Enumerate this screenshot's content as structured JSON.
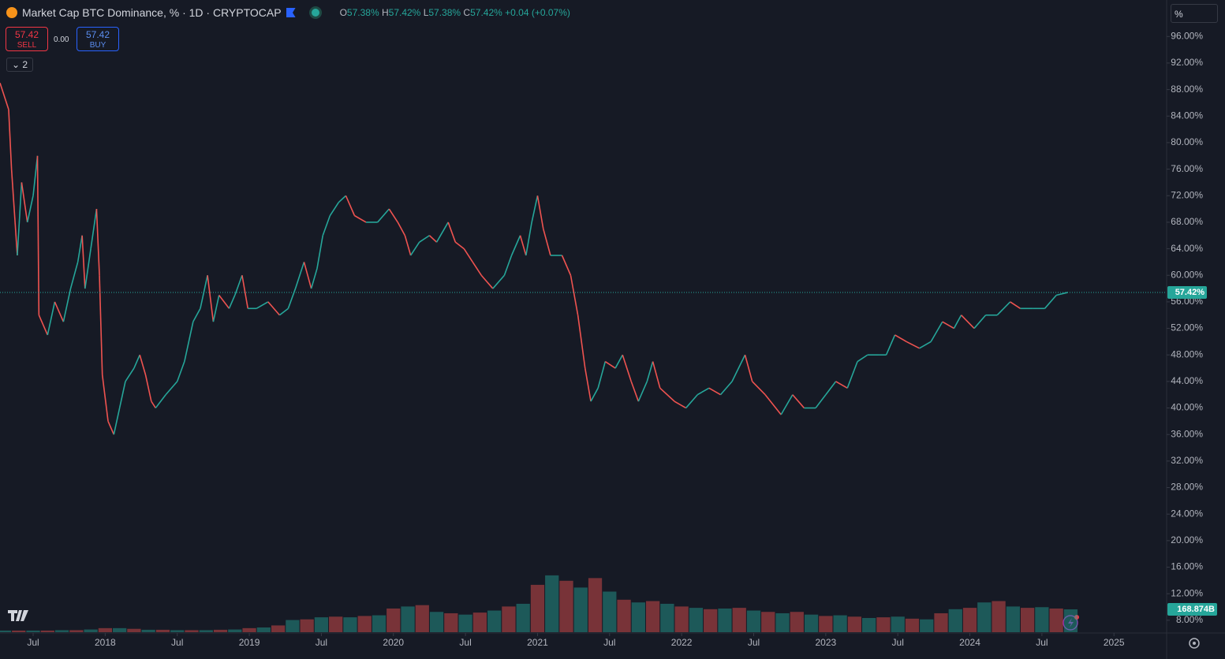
{
  "header": {
    "title": "Market Cap BTC Dominance, % · 1D · CRYPTOCAP",
    "ohlc": [
      {
        "label": "O",
        "value": "57.38%"
      },
      {
        "label": "H",
        "value": "57.42%"
      },
      {
        "label": "L",
        "value": "57.38%"
      },
      {
        "label": "C",
        "value": "57.42%"
      }
    ],
    "change": "+0.04 (+0.07%)",
    "sell": {
      "price": "57.42",
      "label": "SELL"
    },
    "spread": "0.00",
    "buy": {
      "price": "57.42",
      "label": "BUY"
    },
    "indicators": "2",
    "scale_unit": "%"
  },
  "chart_data": {
    "type": "line",
    "grid": false,
    "x": [
      2017.27,
      2017.33,
      2017.35,
      2017.39,
      2017.42,
      2017.46,
      2017.5,
      2017.53,
      2017.54,
      2017.6,
      2017.65,
      2017.71,
      2017.76,
      2017.81,
      2017.84,
      2017.86,
      2017.9,
      2017.94,
      2017.96,
      2017.98,
      2018.02,
      2018.06,
      2018.1,
      2018.14,
      2018.2,
      2018.24,
      2018.28,
      2018.32,
      2018.35,
      2018.42,
      2018.5,
      2018.55,
      2018.61,
      2018.66,
      2018.71,
      2018.75,
      2018.79,
      2018.86,
      2018.9,
      2018.95,
      2018.99,
      2019.05,
      2019.13,
      2019.21,
      2019.27,
      2019.32,
      2019.38,
      2019.43,
      2019.47,
      2019.51,
      2019.56,
      2019.62,
      2019.67,
      2019.73,
      2019.81,
      2019.89,
      2019.97,
      2020.03,
      2020.08,
      2020.12,
      2020.18,
      2020.25,
      2020.3,
      2020.38,
      2020.43,
      2020.49,
      2020.55,
      2020.61,
      2020.69,
      2020.77,
      2020.82,
      2020.88,
      2020.92,
      2020.96,
      2021.0,
      2021.04,
      2021.09,
      2021.17,
      2021.23,
      2021.28,
      2021.33,
      2021.37,
      2021.42,
      2021.47,
      2021.54,
      2021.59,
      2021.65,
      2021.7,
      2021.76,
      2021.8,
      2021.85,
      2021.95,
      2022.03,
      2022.11,
      2022.19,
      2022.27,
      2022.35,
      2022.44,
      2022.49,
      2022.58,
      2022.69,
      2022.77,
      2022.85,
      2022.93,
      2023.0,
      2023.07,
      2023.15,
      2023.22,
      2023.29,
      2023.37,
      2023.42,
      2023.48,
      2023.56,
      2023.65,
      2023.73,
      2023.81,
      2023.89,
      2023.94,
      2024.03,
      2024.11,
      2024.19,
      2024.28,
      2024.35,
      2024.44,
      2024.52,
      2024.6,
      2024.68
    ],
    "series": [
      {
        "colors": {
          "up": "#26a69a",
          "down": "#ef5350"
        },
        "values": [
          89,
          85,
          76,
          63,
          74,
          68,
          72,
          78,
          54,
          51,
          56,
          53,
          58,
          62,
          66,
          58,
          64,
          70,
          60,
          45,
          38,
          36,
          40,
          44,
          46,
          48,
          45,
          41,
          40,
          42,
          44,
          47,
          53,
          55,
          60,
          53,
          57,
          55,
          57,
          60,
          55,
          55,
          56,
          54,
          55,
          58,
          62,
          58,
          61,
          66,
          69,
          71,
          72,
          69,
          68,
          68,
          70,
          68,
          66,
          63,
          65,
          66,
          65,
          68,
          65,
          64,
          62,
          60,
          58,
          60,
          63,
          66,
          63,
          68,
          72,
          67,
          63,
          63,
          60,
          54,
          46,
          41,
          43,
          47,
          46,
          48,
          44,
          41,
          44,
          47,
          43,
          41,
          40,
          42,
          43,
          42,
          44,
          48,
          44,
          42,
          39,
          42,
          40,
          40,
          42,
          44,
          43,
          47,
          48,
          48,
          48,
          51,
          50,
          49,
          50,
          53,
          52,
          54,
          52,
          54,
          54,
          56,
          55,
          55,
          55,
          57,
          57.42
        ]
      }
    ],
    "price_line": {
      "value": 57.42,
      "label": "57.42%",
      "color": "#26a69a"
    },
    "xlim": [
      2017.27,
      2025.36
    ],
    "xticks": [
      {
        "value": 2017.5,
        "label": "Jul"
      },
      2018,
      {
        "value": 2018.5,
        "label": "Jul"
      },
      2019,
      {
        "value": 2019.5,
        "label": "Jul"
      },
      2020,
      {
        "value": 2020.5,
        "label": "Jul"
      },
      2021,
      {
        "value": 2021.5,
        "label": "Jul"
      },
      2022,
      {
        "value": 2022.5,
        "label": "Jul"
      },
      2023,
      {
        "value": 2023.5,
        "label": "Jul"
      },
      2024,
      {
        "value": 2024.5,
        "label": "Jul"
      },
      2025
    ],
    "ylim": [
      6.2,
      101.5
    ],
    "yticks": [
      {
        "value": 8,
        "label": "8.00%"
      },
      {
        "value": 12,
        "label": "12.00%"
      },
      {
        "value": 16,
        "label": "16.00%"
      },
      {
        "value": 20,
        "label": "20.00%"
      },
      {
        "value": 24,
        "label": "24.00%"
      },
      {
        "value": 28,
        "label": "28.00%"
      },
      {
        "value": 32,
        "label": "32.00%"
      },
      {
        "value": 36,
        "label": "36.00%"
      },
      {
        "value": 40,
        "label": "40.00%"
      },
      {
        "value": 44,
        "label": "44.00%"
      },
      {
        "value": 48,
        "label": "48.00%"
      },
      {
        "value": 52,
        "label": "52.00%"
      },
      {
        "value": 56,
        "label": "56.00%"
      },
      {
        "value": 60,
        "label": "60.00%"
      },
      {
        "value": 64,
        "label": "64.00%"
      },
      {
        "value": 68,
        "label": "68.00%"
      },
      {
        "value": 72,
        "label": "72.00%"
      },
      {
        "value": 76,
        "label": "76.00%"
      },
      {
        "value": 80,
        "label": "80.00%"
      },
      {
        "value": 84,
        "label": "84.00%"
      },
      {
        "value": 88,
        "label": "88.00%"
      },
      {
        "value": 92,
        "label": "92.00%"
      },
      {
        "value": 96,
        "label": "96.00%"
      }
    ],
    "volume": {
      "ylim": [
        0,
        1200
      ],
      "color": "#26a69a",
      "x": [
        2017.3,
        2017.4,
        2017.5,
        2017.6,
        2017.7,
        2017.8,
        2017.9,
        2018.0,
        2018.1,
        2018.2,
        2018.3,
        2018.4,
        2018.5,
        2018.6,
        2018.7,
        2018.8,
        2018.9,
        2019.0,
        2019.1,
        2019.2,
        2019.3,
        2019.4,
        2019.5,
        2019.6,
        2019.7,
        2019.8,
        2019.9,
        2020.0,
        2020.1,
        2020.2,
        2020.3,
        2020.4,
        2020.5,
        2020.6,
        2020.7,
        2020.8,
        2020.9,
        2021.0,
        2021.1,
        2021.2,
        2021.3,
        2021.4,
        2021.5,
        2021.6,
        2021.7,
        2021.8,
        2021.9,
        2022.0,
        2022.1,
        2022.2,
        2022.3,
        2022.4,
        2022.5,
        2022.6,
        2022.7,
        2022.8,
        2022.9,
        2023.0,
        2023.1,
        2023.2,
        2023.3,
        2023.4,
        2023.5,
        2023.6,
        2023.7,
        2023.8,
        2023.9,
        2024.0,
        2024.1,
        2024.2,
        2024.3,
        2024.4,
        2024.5,
        2024.6,
        2024.7
      ],
      "values": [
        12,
        12,
        12,
        12,
        15,
        15,
        20,
        30,
        30,
        25,
        18,
        18,
        15,
        15,
        15,
        18,
        20,
        30,
        35,
        50,
        90,
        95,
        110,
        115,
        110,
        120,
        125,
        175,
        190,
        200,
        150,
        140,
        130,
        145,
        160,
        190,
        210,
        350,
        420,
        380,
        330,
        400,
        300,
        240,
        220,
        230,
        210,
        190,
        180,
        170,
        175,
        180,
        160,
        150,
        140,
        150,
        130,
        120,
        125,
        115,
        105,
        110,
        115,
        100,
        95,
        140,
        170,
        180,
        220,
        230,
        190,
        180,
        185,
        175,
        168.874
      ],
      "value_labels": [
        null,
        null,
        null,
        null,
        null,
        null,
        null,
        null,
        null,
        null,
        null,
        null,
        null,
        null,
        null,
        null,
        null,
        null,
        null,
        null,
        null,
        null,
        null,
        null,
        null,
        null,
        null,
        null,
        null,
        null,
        null,
        null,
        null,
        null,
        null,
        null,
        null,
        null,
        null,
        null,
        null,
        null,
        null,
        null,
        null,
        null,
        null,
        null,
        null,
        null,
        null,
        null,
        null,
        null,
        null,
        null,
        null,
        null,
        null,
        null,
        null,
        null,
        null,
        null,
        null,
        null,
        null,
        null,
        null,
        null,
        null,
        null,
        null,
        null,
        "168.874B"
      ]
    }
  }
}
